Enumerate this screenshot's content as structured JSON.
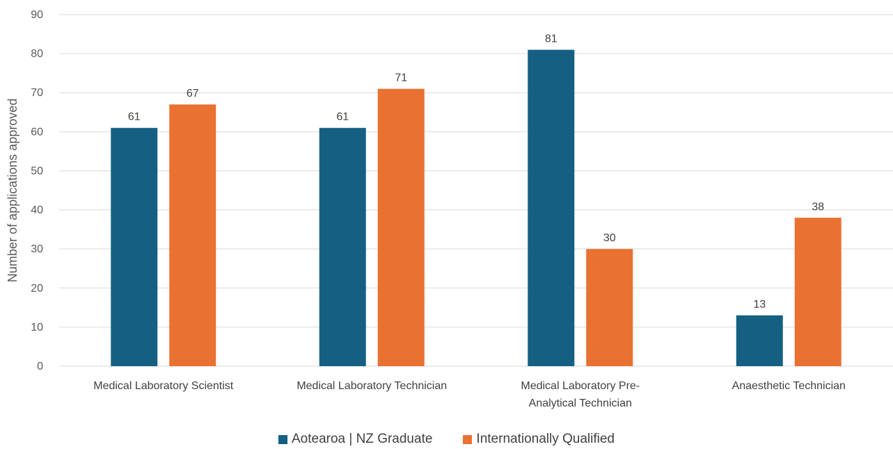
{
  "chart_data": {
    "type": "bar",
    "title": "",
    "ylabel": "Number of applications approved",
    "xlabel": "",
    "ylim": [
      0,
      90
    ],
    "yticks": [
      0,
      10,
      20,
      30,
      40,
      50,
      60,
      70,
      80,
      90
    ],
    "grid": true,
    "legend_position": "bottom",
    "categories": [
      [
        "Medical Laboratory Scientist"
      ],
      [
        "Medical Laboratory Technician"
      ],
      [
        "Medical Laboratory Pre-",
        "Analytical Technician"
      ],
      [
        "Anaesthetic Technician"
      ]
    ],
    "series": [
      {
        "name": "Aotearoa | NZ Graduate",
        "color": "#156082",
        "values": [
          61,
          61,
          81,
          13
        ]
      },
      {
        "name": "Internationally Qualified",
        "color": "#E97132",
        "values": [
          67,
          71,
          30,
          38
        ]
      }
    ]
  }
}
